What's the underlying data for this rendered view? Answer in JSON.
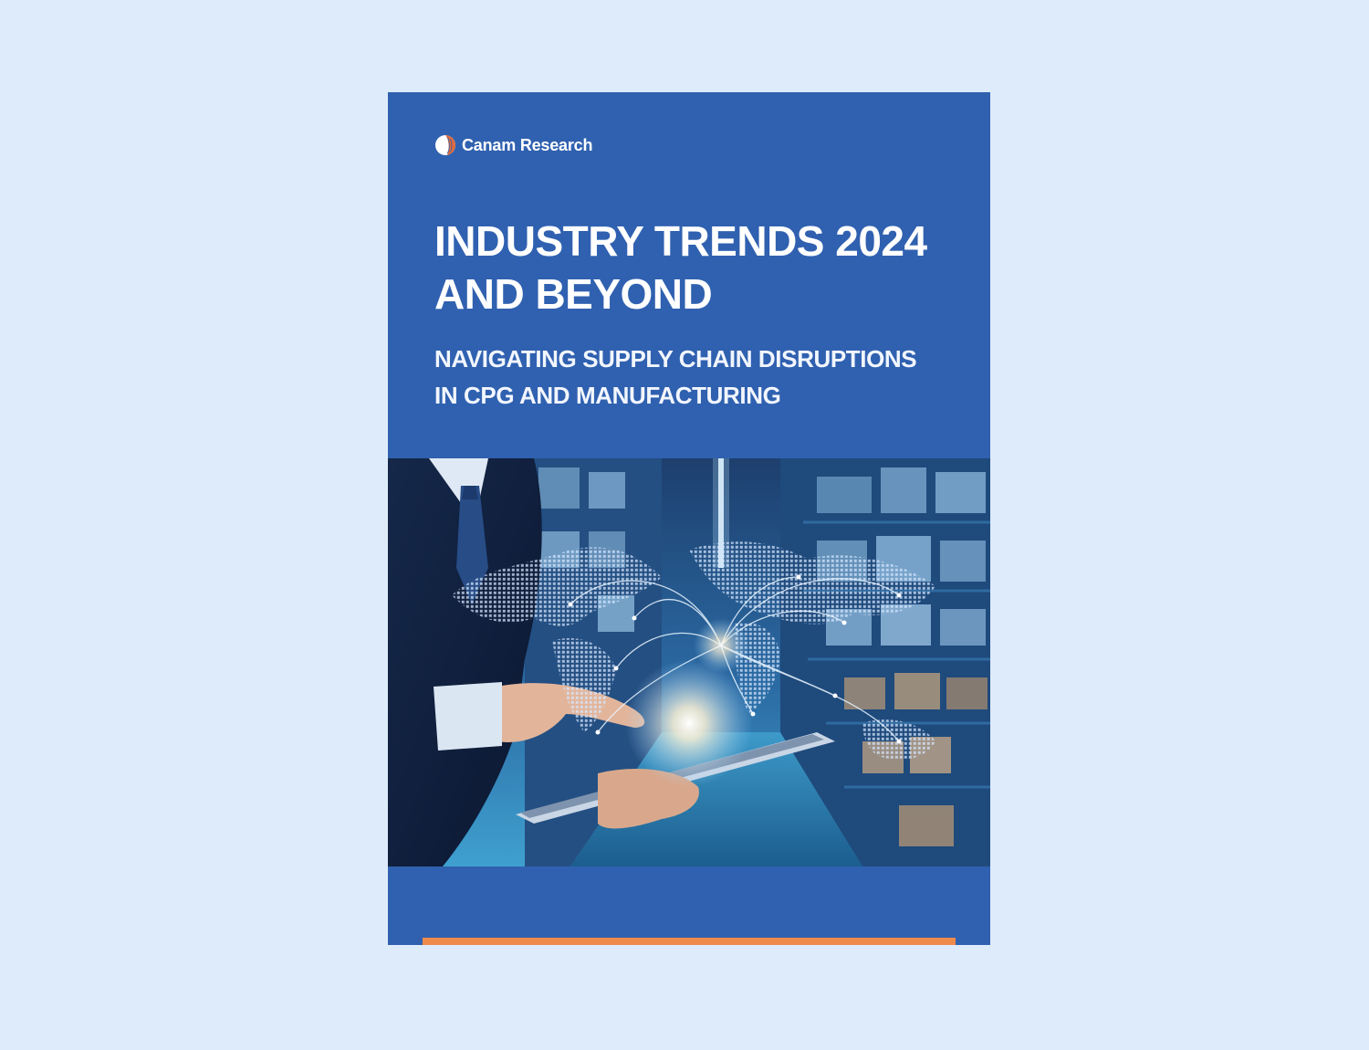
{
  "cover": {
    "brand": {
      "logo_icon": "canam-logo-icon",
      "name": "Canam Research"
    },
    "title_line1": "INDUSTRY TRENDS 2024",
    "title_line2": "AND BEYOND",
    "subtitle_line1": "NAVIGATING SUPPLY CHAIN DISRUPTIONS",
    "subtitle_line2": "IN CPG AND MANUFACTURING",
    "hero_image": "warehouse-businessman-tablet-world-map-photo"
  },
  "colors": {
    "page_background": "#deebfb",
    "cover_background": "#3061b0",
    "text": "#ffffff",
    "accent": "#f08a4b"
  }
}
